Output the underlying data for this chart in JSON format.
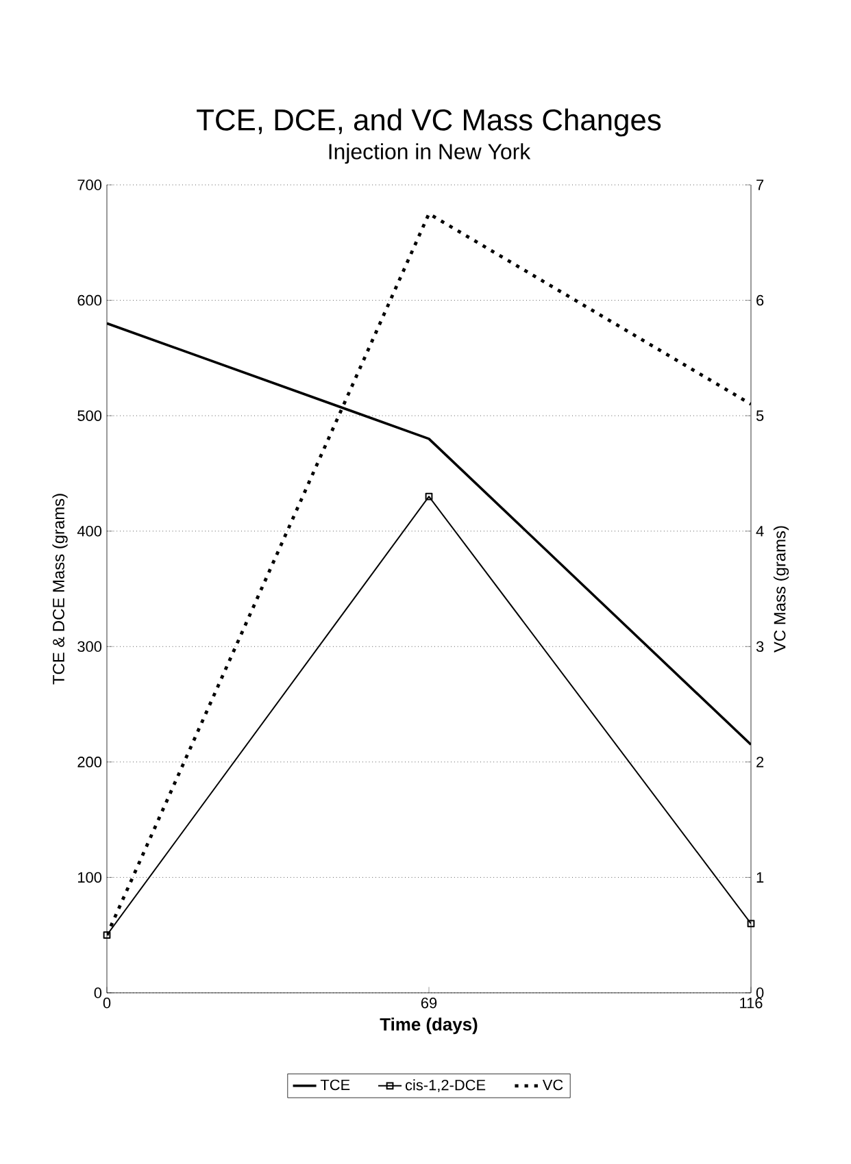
{
  "chart_data": {
    "type": "line",
    "title": "TCE, DCE, and VC Mass Changes",
    "subtitle": "Injection in New York",
    "xlabel": "Time (days)",
    "ylabel": "TCE & DCE Mass (grams)",
    "y2label": "VC Mass (grams)",
    "categories": [
      "0",
      "69",
      "116"
    ],
    "series": [
      {
        "name": "TCE",
        "color": "#000000",
        "values": [
          580,
          480,
          215
        ],
        "marker": "none",
        "line_style": "solid"
      },
      {
        "name": "cis-1,2-DCE",
        "color": "#000000",
        "values": [
          50,
          430,
          60
        ],
        "marker": "square",
        "line_style": "solid"
      },
      {
        "name": "VC",
        "color": "#000000",
        "values": [
          0.5,
          6.75,
          5.1
        ],
        "axis": "y2",
        "marker": "none",
        "line_style": "dotted"
      }
    ],
    "ylim": [
      0,
      700
    ],
    "yticks": [
      0,
      100,
      200,
      300,
      400,
      500,
      600,
      700
    ],
    "y2lim": [
      0,
      7
    ],
    "y2ticks": [
      0,
      1,
      2,
      3,
      4,
      5,
      6,
      7
    ],
    "grid": "y",
    "legend": "bottom"
  }
}
